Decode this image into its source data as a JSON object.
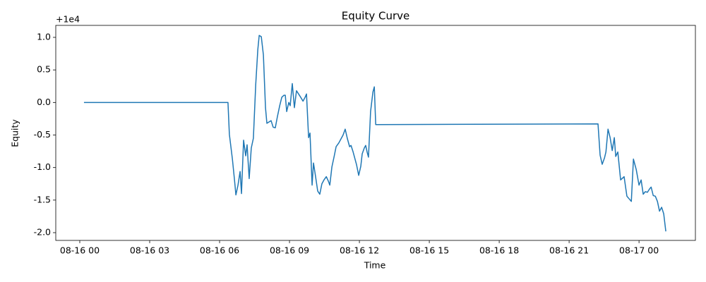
{
  "chart_data": {
    "type": "line",
    "title": "Equity Curve",
    "x_label": "Time",
    "y_label": "Equity",
    "y_offset_label": "+1e4",
    "xlim": [
      -1.03,
      26.42
    ],
    "ylim": [
      -2.119,
      1.184
    ],
    "xticks": [
      {
        "value": 0,
        "label": "08-16 00"
      },
      {
        "value": 3,
        "label": "08-16 03"
      },
      {
        "value": 6,
        "label": "08-16 06"
      },
      {
        "value": 9,
        "label": "08-16 09"
      },
      {
        "value": 12,
        "label": "08-16 12"
      },
      {
        "value": 15,
        "label": "08-16 15"
      },
      {
        "value": 18,
        "label": "08-16 18"
      },
      {
        "value": 21,
        "label": "08-16 21"
      },
      {
        "value": 24,
        "label": "08-17 00"
      }
    ],
    "yticks": [
      {
        "value": 1,
        "label": "1.0"
      },
      0.5,
      {
        "value": 0,
        "label": "0.0"
      },
      -0.5,
      {
        "value": -1,
        "label": "-1.0"
      },
      -1.5,
      {
        "value": -2,
        "label": "-2.0"
      }
    ],
    "grid": false,
    "series": [
      {
        "color": "#1f77b4",
        "x": [
          0.18,
          6.36,
          6.42,
          6.55,
          6.64,
          6.7,
          6.79,
          6.88,
          6.94,
          7.03,
          7.12,
          7.18,
          7.27,
          7.36,
          7.45,
          7.55,
          7.64,
          7.7,
          7.79,
          7.88,
          7.97,
          8.03,
          8.12,
          8.21,
          8.3,
          8.39,
          8.48,
          8.58,
          8.67,
          8.76,
          8.82,
          8.88,
          8.97,
          9.03,
          9.12,
          9.21,
          9.3,
          9.39,
          9.48,
          9.58,
          9.67,
          9.73,
          9.82,
          9.88,
          9.97,
          10.03,
          10.12,
          10.21,
          10.3,
          10.39,
          10.48,
          10.58,
          10.67,
          10.73,
          10.82,
          10.91,
          11.0,
          11.12,
          11.21,
          11.3,
          11.39,
          11.48,
          11.58,
          11.64,
          11.73,
          11.88,
          11.97,
          12.06,
          12.12,
          12.21,
          12.27,
          12.33,
          12.39,
          12.48,
          12.58,
          12.64,
          12.7,
          22.24,
          22.33,
          22.42,
          22.52,
          22.58,
          22.67,
          22.76,
          22.85,
          22.94,
          23.0,
          23.09,
          23.21,
          23.36,
          23.48,
          23.67,
          23.76,
          23.88,
          24.0,
          24.09,
          24.18,
          24.27,
          24.36,
          24.45,
          24.52,
          24.61,
          24.7,
          24.79,
          24.88,
          24.97,
          25.06,
          25.15
        ],
        "values": [
          0,
          0,
          -0.49,
          -0.87,
          -1.19,
          -1.42,
          -1.27,
          -1.06,
          -1.4,
          -0.58,
          -0.82,
          -0.65,
          -1.17,
          -0.7,
          -0.55,
          0.27,
          0.81,
          1.03,
          1.01,
          0.73,
          -0.08,
          -0.32,
          -0.3,
          -0.28,
          -0.38,
          -0.39,
          -0.22,
          -0.05,
          0.08,
          0.11,
          0.11,
          -0.14,
          0,
          -0.05,
          0.29,
          -0.08,
          0.18,
          0.13,
          0.08,
          0.02,
          0.08,
          0.13,
          -0.54,
          -0.47,
          -1.27,
          -0.93,
          -1.14,
          -1.36,
          -1.41,
          -1.25,
          -1.19,
          -1.14,
          -1.21,
          -1.27,
          -0.99,
          -0.84,
          -0.68,
          -0.62,
          -0.56,
          -0.5,
          -0.41,
          -0.55,
          -0.68,
          -0.66,
          -0.76,
          -0.96,
          -1.12,
          -0.98,
          -0.79,
          -0.7,
          -0.66,
          -0.76,
          -0.84,
          -0.14,
          0.16,
          0.24,
          -0.34,
          -0.33,
          -0.81,
          -0.95,
          -0.85,
          -0.76,
          -0.41,
          -0.54,
          -0.74,
          -0.54,
          -0.83,
          -0.76,
          -1.19,
          -1.14,
          -1.44,
          -1.52,
          -0.87,
          -1.03,
          -1.27,
          -1.19,
          -1.41,
          -1.37,
          -1.38,
          -1.33,
          -1.3,
          -1.43,
          -1.44,
          -1.52,
          -1.67,
          -1.61,
          -1.71,
          -1.98
        ]
      }
    ]
  }
}
